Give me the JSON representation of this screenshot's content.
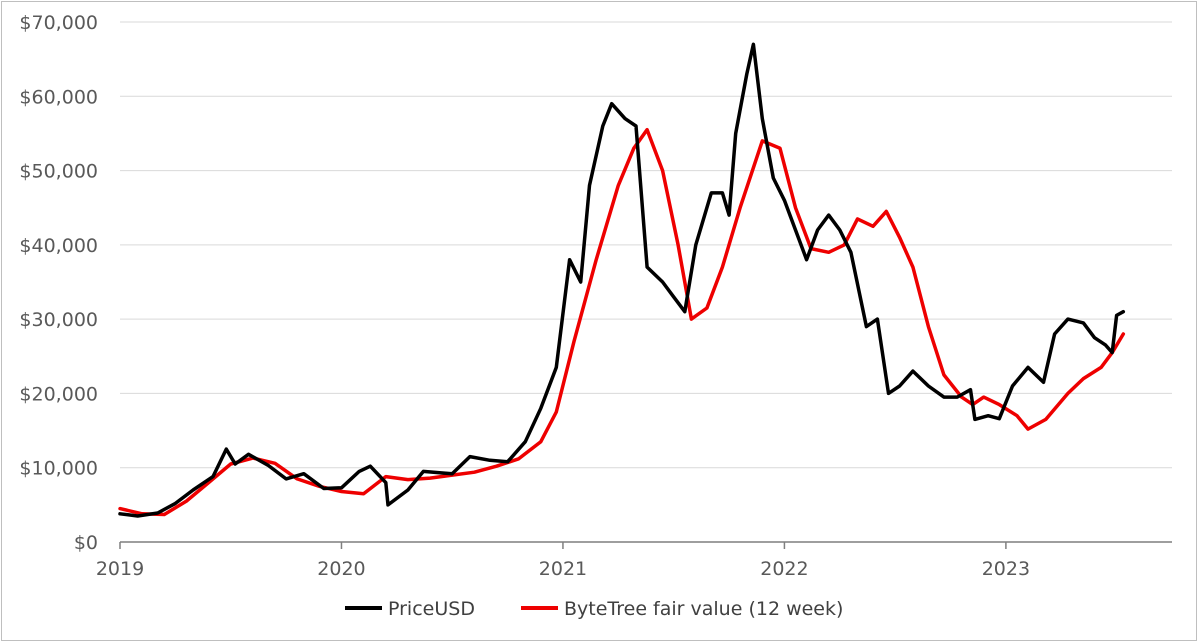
{
  "chart_data": {
    "type": "line",
    "title": "",
    "xlabel": "",
    "ylabel": "",
    "x_ticks": [
      "2019",
      "2020",
      "2021",
      "2022",
      "2023"
    ],
    "y_ticks": [
      "$0",
      "$10,000",
      "$20,000",
      "$30,000",
      "$40,000",
      "$50,000",
      "$60,000",
      "$70,000"
    ],
    "ylim": [
      0,
      70000
    ],
    "xlim": [
      2019.0,
      2023.75
    ],
    "grid": "horizontal",
    "legend_position": "bottom",
    "series": [
      {
        "name": "PriceUSD",
        "color": "#000000",
        "points": [
          [
            2019.0,
            3800
          ],
          [
            2019.08,
            3500
          ],
          [
            2019.17,
            3900
          ],
          [
            2019.25,
            5200
          ],
          [
            2019.33,
            7000
          ],
          [
            2019.42,
            8800
          ],
          [
            2019.48,
            12500
          ],
          [
            2019.52,
            10500
          ],
          [
            2019.58,
            11800
          ],
          [
            2019.67,
            10300
          ],
          [
            2019.75,
            8500
          ],
          [
            2019.83,
            9200
          ],
          [
            2019.92,
            7200
          ],
          [
            2020.0,
            7300
          ],
          [
            2020.08,
            9500
          ],
          [
            2020.13,
            10200
          ],
          [
            2020.2,
            8000
          ],
          [
            2020.21,
            5000
          ],
          [
            2020.3,
            7000
          ],
          [
            2020.37,
            9500
          ],
          [
            2020.45,
            9300
          ],
          [
            2020.5,
            9200
          ],
          [
            2020.58,
            11500
          ],
          [
            2020.67,
            11000
          ],
          [
            2020.75,
            10800
          ],
          [
            2020.83,
            13500
          ],
          [
            2020.9,
            18000
          ],
          [
            2020.97,
            23500
          ],
          [
            2021.03,
            38000
          ],
          [
            2021.08,
            35000
          ],
          [
            2021.12,
            48000
          ],
          [
            2021.18,
            56000
          ],
          [
            2021.22,
            59000
          ],
          [
            2021.28,
            57000
          ],
          [
            2021.33,
            56000
          ],
          [
            2021.38,
            37000
          ],
          [
            2021.45,
            35000
          ],
          [
            2021.5,
            33000
          ],
          [
            2021.55,
            31000
          ],
          [
            2021.6,
            40000
          ],
          [
            2021.67,
            47000
          ],
          [
            2021.72,
            47000
          ],
          [
            2021.75,
            44000
          ],
          [
            2021.78,
            55000
          ],
          [
            2021.83,
            63000
          ],
          [
            2021.86,
            67000
          ],
          [
            2021.9,
            57000
          ],
          [
            2021.95,
            49000
          ],
          [
            2022.0,
            46000
          ],
          [
            2022.05,
            42000
          ],
          [
            2022.1,
            38000
          ],
          [
            2022.15,
            42000
          ],
          [
            2022.2,
            44000
          ],
          [
            2022.25,
            42000
          ],
          [
            2022.3,
            39000
          ],
          [
            2022.37,
            29000
          ],
          [
            2022.42,
            30000
          ],
          [
            2022.47,
            20000
          ],
          [
            2022.52,
            21000
          ],
          [
            2022.58,
            23000
          ],
          [
            2022.65,
            21000
          ],
          [
            2022.72,
            19500
          ],
          [
            2022.78,
            19500
          ],
          [
            2022.84,
            20500
          ],
          [
            2022.86,
            16500
          ],
          [
            2022.92,
            17000
          ],
          [
            2022.97,
            16600
          ],
          [
            2023.03,
            21000
          ],
          [
            2023.1,
            23500
          ],
          [
            2023.17,
            21500
          ],
          [
            2023.22,
            28000
          ],
          [
            2023.28,
            30000
          ],
          [
            2023.35,
            29500
          ],
          [
            2023.4,
            27500
          ],
          [
            2023.45,
            26500
          ],
          [
            2023.48,
            25500
          ],
          [
            2023.5,
            30500
          ],
          [
            2023.53,
            31000
          ]
        ]
      },
      {
        "name": "ByteTree fair value (12 week)",
        "color": "#ee0000",
        "points": [
          [
            2019.0,
            4500
          ],
          [
            2019.1,
            3800
          ],
          [
            2019.2,
            3700
          ],
          [
            2019.3,
            5500
          ],
          [
            2019.4,
            8000
          ],
          [
            2019.5,
            10500
          ],
          [
            2019.6,
            11300
          ],
          [
            2019.7,
            10600
          ],
          [
            2019.8,
            8500
          ],
          [
            2019.9,
            7500
          ],
          [
            2020.0,
            6800
          ],
          [
            2020.1,
            6500
          ],
          [
            2020.2,
            8800
          ],
          [
            2020.3,
            8400
          ],
          [
            2020.4,
            8600
          ],
          [
            2020.5,
            9000
          ],
          [
            2020.6,
            9400
          ],
          [
            2020.7,
            10200
          ],
          [
            2020.8,
            11200
          ],
          [
            2020.9,
            13500
          ],
          [
            2020.97,
            17500
          ],
          [
            2021.05,
            27000
          ],
          [
            2021.15,
            38000
          ],
          [
            2021.25,
            48000
          ],
          [
            2021.32,
            53000
          ],
          [
            2021.38,
            55500
          ],
          [
            2021.45,
            50000
          ],
          [
            2021.52,
            40000
          ],
          [
            2021.58,
            30000
          ],
          [
            2021.65,
            31500
          ],
          [
            2021.72,
            37000
          ],
          [
            2021.8,
            45000
          ],
          [
            2021.9,
            54000
          ],
          [
            2021.98,
            53000
          ],
          [
            2022.05,
            45000
          ],
          [
            2022.12,
            39500
          ],
          [
            2022.2,
            39000
          ],
          [
            2022.27,
            40000
          ],
          [
            2022.33,
            43500
          ],
          [
            2022.4,
            42500
          ],
          [
            2022.46,
            44500
          ],
          [
            2022.52,
            41000
          ],
          [
            2022.58,
            37000
          ],
          [
            2022.65,
            29000
          ],
          [
            2022.72,
            22500
          ],
          [
            2022.8,
            19500
          ],
          [
            2022.85,
            18500
          ],
          [
            2022.9,
            19500
          ],
          [
            2022.97,
            18500
          ],
          [
            2023.05,
            17000
          ],
          [
            2023.1,
            15200
          ],
          [
            2023.18,
            16500
          ],
          [
            2023.28,
            20000
          ],
          [
            2023.35,
            22000
          ],
          [
            2023.43,
            23500
          ],
          [
            2023.48,
            25500
          ],
          [
            2023.53,
            28000
          ]
        ]
      }
    ]
  }
}
